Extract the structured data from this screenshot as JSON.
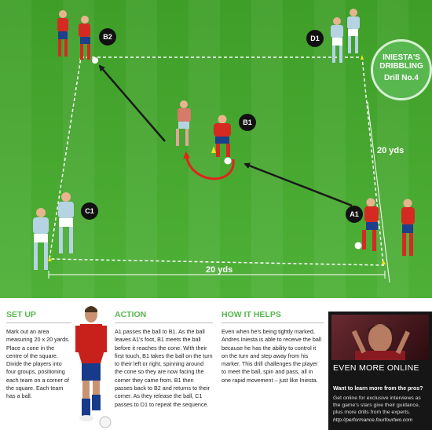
{
  "badges": {
    "b2": "B2",
    "d1": "D1",
    "b1": "B1",
    "c1": "C1",
    "a1": "A1"
  },
  "drill": {
    "title_line1": "INIESTA'S",
    "title_line2": "DRIBBLING",
    "number": "Drill No.4"
  },
  "measurements": {
    "side": "20 yds",
    "bottom": "20 yds"
  },
  "setup": {
    "heading": "SET UP",
    "text": "Mark out an area measuring 20 x 20 yards. Place a cone in the centre of the square. Divide the players into four groups, positioning each team on a corner of the square. Each team has a ball."
  },
  "action": {
    "heading": "ACTION",
    "text": "A1 passes the ball to B1. As the ball leaves A1's foot, B1 meets the ball before it reaches the cone. With their first touch, B1 takes the ball on the turn to their left or right, spinning around the cone so they are now facing the corner they came from. B1 then passes back to B2 and returns to their corner. As they release the ball, C1 passes to D1 to repeat the sequence."
  },
  "helps": {
    "heading": "HOW IT HELPS",
    "text": "Even when he's being tightly marked, Andres Iniesta is able to receive the ball because he has the ability to control it on the turn and step away from his marker. This drill challenges the player to meet the ball, spin and pass, all in one rapid movement – just like Iniesta."
  },
  "promo": {
    "title": "EVEN MORE ONLINE",
    "question": "Want to learn more from the pros?",
    "description": "Get online for exclusive interviews as the game's stars give their guidance, plus more drills from the experts.",
    "url": "http://performance.fourfourtwo.com"
  },
  "colors": {
    "accent_green": "#58b74f",
    "pitch_green": "#46a82c",
    "team_red": "#d42a22",
    "team_light": "#b5d3e3",
    "arrow_black": "#1a1a1a",
    "arrow_red": "#e2231a"
  }
}
